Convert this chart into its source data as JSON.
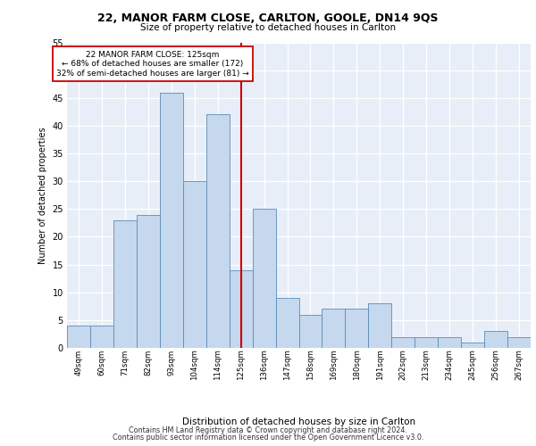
{
  "title1": "22, MANOR FARM CLOSE, CARLTON, GOOLE, DN14 9QS",
  "title2": "Size of property relative to detached houses in Carlton",
  "xlabel": "Distribution of detached houses by size in Carlton",
  "ylabel": "Number of detached properties",
  "categories": [
    "49sqm",
    "60sqm",
    "71sqm",
    "82sqm",
    "93sqm",
    "104sqm",
    "114sqm",
    "125sqm",
    "136sqm",
    "147sqm",
    "158sqm",
    "169sqm",
    "180sqm",
    "191sqm",
    "202sqm",
    "213sqm",
    "234sqm",
    "245sqm",
    "256sqm",
    "267sqm"
  ],
  "values": [
    4,
    4,
    23,
    24,
    46,
    30,
    42,
    14,
    25,
    9,
    6,
    7,
    7,
    8,
    2,
    2,
    2,
    1,
    3,
    2
  ],
  "bar_color": "#c5d8ed",
  "bar_edge_color": "#5b8db8",
  "vline_color": "#cc0000",
  "annotation_line1": "22 MANOR FARM CLOSE: 125sqm",
  "annotation_line2": "← 68% of detached houses are smaller (172)",
  "annotation_line3": "32% of semi-detached houses are larger (81) →",
  "annotation_box_color": "#ffffff",
  "annotation_box_edge": "#cc0000",
  "ylim_max": 55,
  "yticks": [
    0,
    5,
    10,
    15,
    20,
    25,
    30,
    35,
    40,
    45,
    50,
    55
  ],
  "bg_color": "#e8eef8",
  "grid_color": "#ffffff",
  "footer1": "Contains HM Land Registry data © Crown copyright and database right 2024.",
  "footer2": "Contains public sector information licensed under the Open Government Licence v3.0."
}
